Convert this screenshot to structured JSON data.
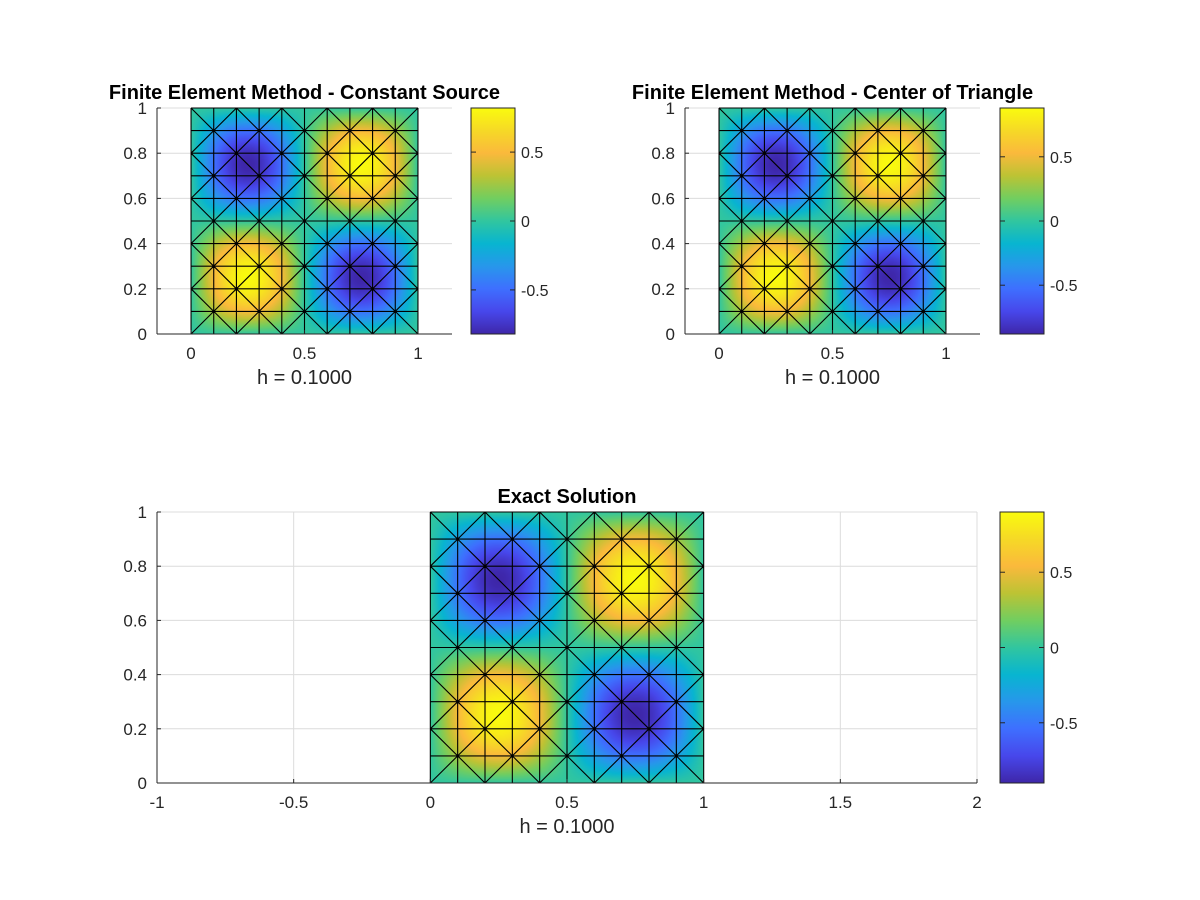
{
  "figure": {
    "background": "#ffffff"
  },
  "chart_data": [
    {
      "id": "constant-source",
      "type": "heatmap",
      "title": "Finite Element Method - Constant Source",
      "xlabel": "h = 0.1000",
      "xlim": [
        -0.15,
        1.15
      ],
      "ylim": [
        0,
        1
      ],
      "xticks": [
        0,
        0.5,
        1
      ],
      "xtick_labels": [
        "0",
        "0.5",
        "1"
      ],
      "yticks": [
        0,
        0.2,
        0.4,
        0.6,
        0.8,
        1
      ],
      "ytick_labels": [
        "0",
        "0.2",
        "0.4",
        "0.6",
        "0.8",
        "1"
      ],
      "colorbar": {
        "range": [
          -0.82,
          0.82
        ],
        "ticks": [
          -0.5,
          0,
          0.5
        ],
        "tick_labels": [
          "-0.5",
          "0",
          "0.5"
        ]
      },
      "function": "sin(2*pi*x)*sin(2*pi*y)",
      "amplitude": 0.82,
      "grid": true,
      "mesh": {
        "divisions": 10,
        "pattern": "union-jack"
      },
      "extrema": [
        {
          "x": 0.25,
          "y": 0.75,
          "value": -0.82
        },
        {
          "x": 0.75,
          "y": 0.75,
          "value": 0.82
        },
        {
          "x": 0.25,
          "y": 0.25,
          "value": 0.82
        },
        {
          "x": 0.75,
          "y": 0.25,
          "value": -0.82
        }
      ]
    },
    {
      "id": "center-of-triangle",
      "type": "heatmap",
      "title": "Finite Element Method - Center of Triangle",
      "xlabel": "h = 0.1000",
      "xlim": [
        -0.15,
        1.15
      ],
      "ylim": [
        0,
        1
      ],
      "xticks": [
        0,
        0.5,
        1
      ],
      "xtick_labels": [
        "0",
        "0.5",
        "1"
      ],
      "yticks": [
        0,
        0.2,
        0.4,
        0.6,
        0.8,
        1
      ],
      "ytick_labels": [
        "0",
        "0.2",
        "0.4",
        "0.6",
        "0.8",
        "1"
      ],
      "colorbar": {
        "range": [
          -0.88,
          0.88
        ],
        "ticks": [
          -0.5,
          0,
          0.5
        ],
        "tick_labels": [
          "-0.5",
          "0",
          "0.5"
        ]
      },
      "function": "sin(2*pi*x)*sin(2*pi*y)",
      "amplitude": 0.88,
      "grid": true,
      "mesh": {
        "divisions": 10,
        "pattern": "union-jack"
      },
      "extrema": [
        {
          "x": 0.25,
          "y": 0.75,
          "value": -0.88
        },
        {
          "x": 0.75,
          "y": 0.75,
          "value": 0.88
        },
        {
          "x": 0.25,
          "y": 0.25,
          "value": 0.88
        },
        {
          "x": 0.75,
          "y": 0.25,
          "value": -0.88
        }
      ]
    },
    {
      "id": "exact-solution",
      "type": "heatmap",
      "title": "Exact Solution",
      "xlabel": "h = 0.1000",
      "xlim": [
        -1.0,
        2.0
      ],
      "ylim": [
        0,
        1
      ],
      "xticks": [
        -1,
        -0.5,
        0,
        0.5,
        1,
        1.5,
        2
      ],
      "xtick_labels": [
        "-1",
        "-0.5",
        "0",
        "0.5",
        "1",
        "1.5",
        "2"
      ],
      "yticks": [
        0,
        0.2,
        0.4,
        0.6,
        0.8,
        1
      ],
      "ytick_labels": [
        "0",
        "0.2",
        "0.4",
        "0.6",
        "0.8",
        "1"
      ],
      "colorbar": {
        "range": [
          -0.9,
          0.9
        ],
        "ticks": [
          -0.5,
          0,
          0.5
        ],
        "tick_labels": [
          "-0.5",
          "0",
          "0.5"
        ]
      },
      "function": "sin(2*pi*x)*sin(2*pi*y)",
      "amplitude": 0.9,
      "grid": true,
      "mesh": {
        "divisions": 10,
        "pattern": "union-jack"
      },
      "extrema": [
        {
          "x": 0.25,
          "y": 0.75,
          "value": -0.9
        },
        {
          "x": 0.75,
          "y": 0.75,
          "value": 0.9
        },
        {
          "x": 0.25,
          "y": 0.25,
          "value": 0.9
        },
        {
          "x": 0.75,
          "y": 0.25,
          "value": -0.9
        }
      ]
    }
  ]
}
